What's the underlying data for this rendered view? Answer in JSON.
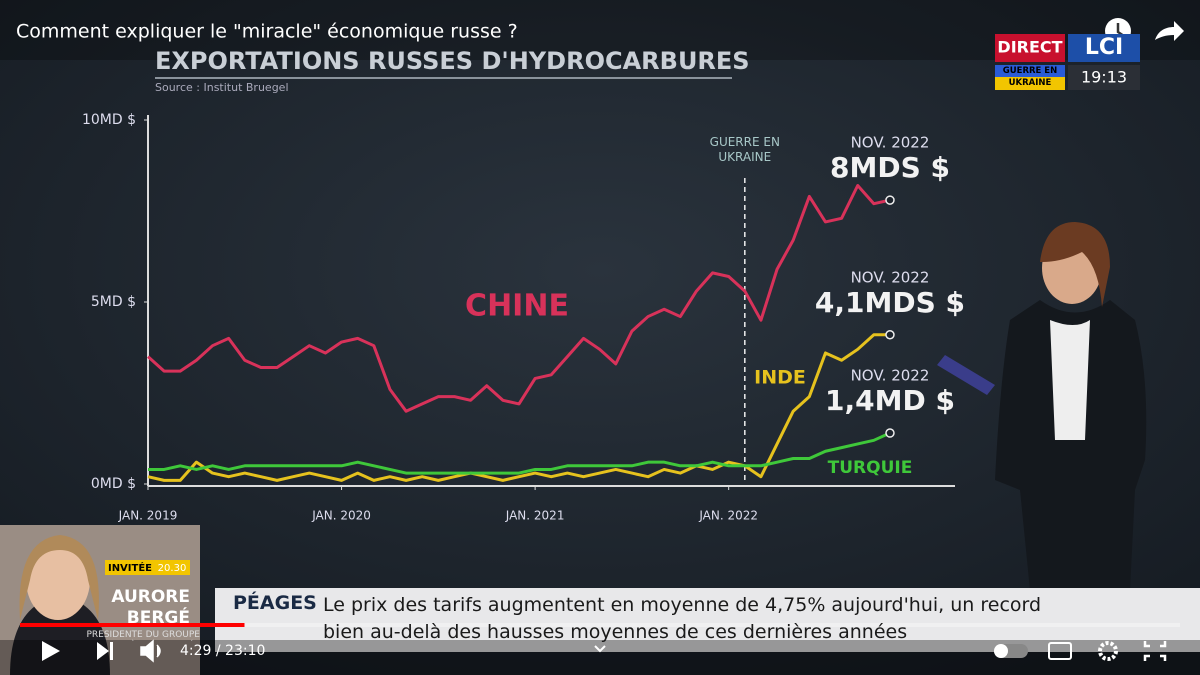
{
  "video": {
    "title": "Comment expliquer le \"miracle\" économique russe ?",
    "time": "4:29 / 23:10"
  },
  "channel": {
    "live": "DIRECT",
    "logo": "LCI",
    "tag": "GUERRE EN UKRAINE",
    "clock": "19:13"
  },
  "guest": {
    "badge": "INVITÉE",
    "hour": "20.30",
    "first_name": "AURORE",
    "last_name": "BERGÉ",
    "role": "PRÉSIDENTE DU GROUPE RENAISSANCE À L'ASSEMBLÉE"
  },
  "ticker": {
    "topic": "PÉAGES",
    "text": "Le prix des tarifs augmentent en moyenne de 4,75% aujourd'hui, un record bien au-delà des hausses moyennes de ces dernières années"
  },
  "chart_data": {
    "type": "line",
    "title": "EXPORTATIONS RUSSES D'HYDROCARBURES",
    "subtitle": "Source : Institut Bruegel",
    "x": [
      "2019-01",
      "2019-02",
      "2019-03",
      "2019-04",
      "2019-05",
      "2019-06",
      "2019-07",
      "2019-08",
      "2019-09",
      "2019-10",
      "2019-11",
      "2019-12",
      "2020-01",
      "2020-02",
      "2020-03",
      "2020-04",
      "2020-05",
      "2020-06",
      "2020-07",
      "2020-08",
      "2020-09",
      "2020-10",
      "2020-11",
      "2020-12",
      "2021-01",
      "2021-02",
      "2021-03",
      "2021-04",
      "2021-05",
      "2021-06",
      "2021-07",
      "2021-08",
      "2021-09",
      "2021-10",
      "2021-11",
      "2021-12",
      "2022-01",
      "2022-02",
      "2022-03",
      "2022-04",
      "2022-05",
      "2022-06",
      "2022-07",
      "2022-08",
      "2022-09",
      "2022-10",
      "2022-11"
    ],
    "xticks": [
      {
        "value": "2019-01",
        "label": "JAN. 2019"
      },
      {
        "value": "2020-01",
        "label": "JAN. 2020"
      },
      {
        "value": "2021-01",
        "label": "JAN. 2021"
      },
      {
        "value": "2022-01",
        "label": "JAN. 2022"
      }
    ],
    "ylim": [
      0,
      10
    ],
    "yticks": [
      {
        "value": 0,
        "label": "0MD $"
      },
      {
        "value": 5,
        "label": "5MD $"
      },
      {
        "value": 10,
        "label": "10MD $"
      }
    ],
    "grid": false,
    "series": [
      {
        "name": "CHINE",
        "color": "#d8325a",
        "values": [
          3.5,
          3.1,
          3.1,
          3.4,
          3.8,
          4.0,
          3.4,
          3.2,
          3.2,
          3.5,
          3.8,
          3.6,
          3.9,
          4.0,
          3.8,
          2.6,
          2.0,
          2.2,
          2.4,
          2.4,
          2.3,
          2.7,
          2.3,
          2.2,
          2.9,
          3.0,
          3.5,
          4.0,
          3.7,
          3.3,
          4.2,
          4.6,
          4.8,
          4.6,
          5.3,
          5.8,
          5.7,
          5.3,
          4.5,
          5.9,
          6.7,
          7.9,
          7.2,
          7.3,
          8.2,
          7.7,
          7.8
        ],
        "end_label": {
          "date": "NOV. 2022",
          "text": "8MDS $"
        }
      },
      {
        "name": "INDE",
        "color": "#e6c21e",
        "values": [
          0.2,
          0.1,
          0.1,
          0.6,
          0.3,
          0.2,
          0.3,
          0.2,
          0.1,
          0.2,
          0.3,
          0.2,
          0.1,
          0.3,
          0.1,
          0.2,
          0.1,
          0.2,
          0.1,
          0.2,
          0.3,
          0.2,
          0.1,
          0.2,
          0.3,
          0.2,
          0.3,
          0.2,
          0.3,
          0.4,
          0.3,
          0.2,
          0.4,
          0.3,
          0.5,
          0.4,
          0.6,
          0.5,
          0.2,
          1.1,
          2.0,
          2.4,
          3.6,
          3.4,
          3.7,
          4.1,
          4.1
        ],
        "end_label": {
          "date": "NOV. 2022",
          "text": "4,1MDS $"
        }
      },
      {
        "name": "TURQUIE",
        "color": "#3fc83a",
        "values": [
          0.4,
          0.4,
          0.5,
          0.4,
          0.5,
          0.4,
          0.5,
          0.5,
          0.5,
          0.5,
          0.5,
          0.5,
          0.5,
          0.6,
          0.5,
          0.4,
          0.3,
          0.3,
          0.3,
          0.3,
          0.3,
          0.3,
          0.3,
          0.3,
          0.4,
          0.4,
          0.5,
          0.5,
          0.5,
          0.5,
          0.5,
          0.6,
          0.6,
          0.5,
          0.5,
          0.6,
          0.5,
          0.5,
          0.5,
          0.6,
          0.7,
          0.7,
          0.9,
          1.0,
          1.1,
          1.2,
          1.4
        ],
        "end_label": {
          "date": "NOV. 2022",
          "text": "1,4MD $"
        }
      }
    ],
    "annotations": [
      {
        "x": "2022-02",
        "text": "GUERRE EN UKRAINE"
      }
    ]
  }
}
